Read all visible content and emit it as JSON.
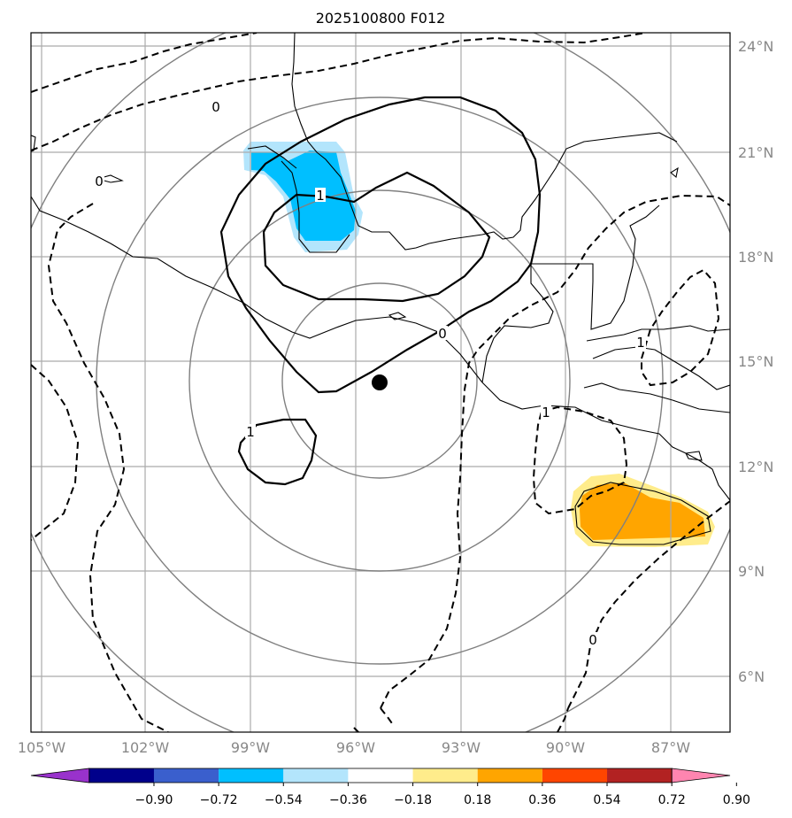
{
  "title": "2025100800 F012",
  "map": {
    "lon_ticks": [
      "105°W",
      "102°W",
      "99°W",
      "96°W",
      "93°W",
      "90°W",
      "87°W"
    ],
    "lat_ticks": [
      "24°N",
      "21°N",
      "18°N",
      "15°N",
      "12°N",
      "9°N",
      "6°N"
    ],
    "storm_center": {
      "lon": -95.3,
      "lat": 14.4
    },
    "contour_labels": [
      "0",
      "0",
      "1",
      "1",
      "1",
      "0",
      "1",
      "0"
    ],
    "colors": {
      "coastline": "#000000",
      "grid": "#aaaaaa",
      "range_rings": "#808080",
      "negative_fill": "#00bfff",
      "negative_fill_light": "#b3e5fc",
      "positive_fill": "#ffa500",
      "positive_fill_light": "#ffec8b"
    }
  },
  "colorbar": {
    "tick_labels": [
      "−0.90",
      "−0.72",
      "−0.54",
      "−0.36",
      "−0.18",
      "0.18",
      "0.36",
      "0.54",
      "0.72",
      "0.90"
    ],
    "colors": [
      "#9932cc",
      "#00008b",
      "#3a5fcd",
      "#00bfff",
      "#b3e5fc",
      "#ffffff",
      "#ffec8b",
      "#ffa500",
      "#ff4500",
      "#b22222",
      "#ff85b0"
    ]
  }
}
